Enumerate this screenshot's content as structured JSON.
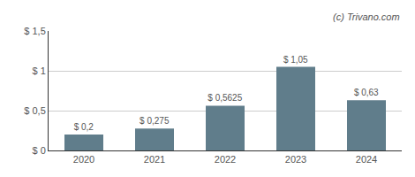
{
  "chart_data": {
    "type": "bar",
    "categories": [
      "2020",
      "2021",
      "2022",
      "2023",
      "2024"
    ],
    "values": [
      0.2,
      0.275,
      0.5625,
      1.05,
      0.63
    ],
    "value_labels": [
      "$ 0,2",
      "$ 0,275",
      "$ 0,5625",
      "$ 1,05",
      "$ 0,63"
    ],
    "data_labels": true,
    "color": "#607d8b",
    "ylim": [
      0,
      1.5
    ],
    "yticks": [
      {
        "value": 0,
        "label": "$ 0"
      },
      {
        "value": 0.5,
        "label": "$ 0,5"
      },
      {
        "value": 1.0,
        "label": "$ 1"
      },
      {
        "value": 1.5,
        "label": "$ 1,5"
      }
    ],
    "grid": true,
    "annotations": [
      "(c) Trivano.com"
    ]
  }
}
